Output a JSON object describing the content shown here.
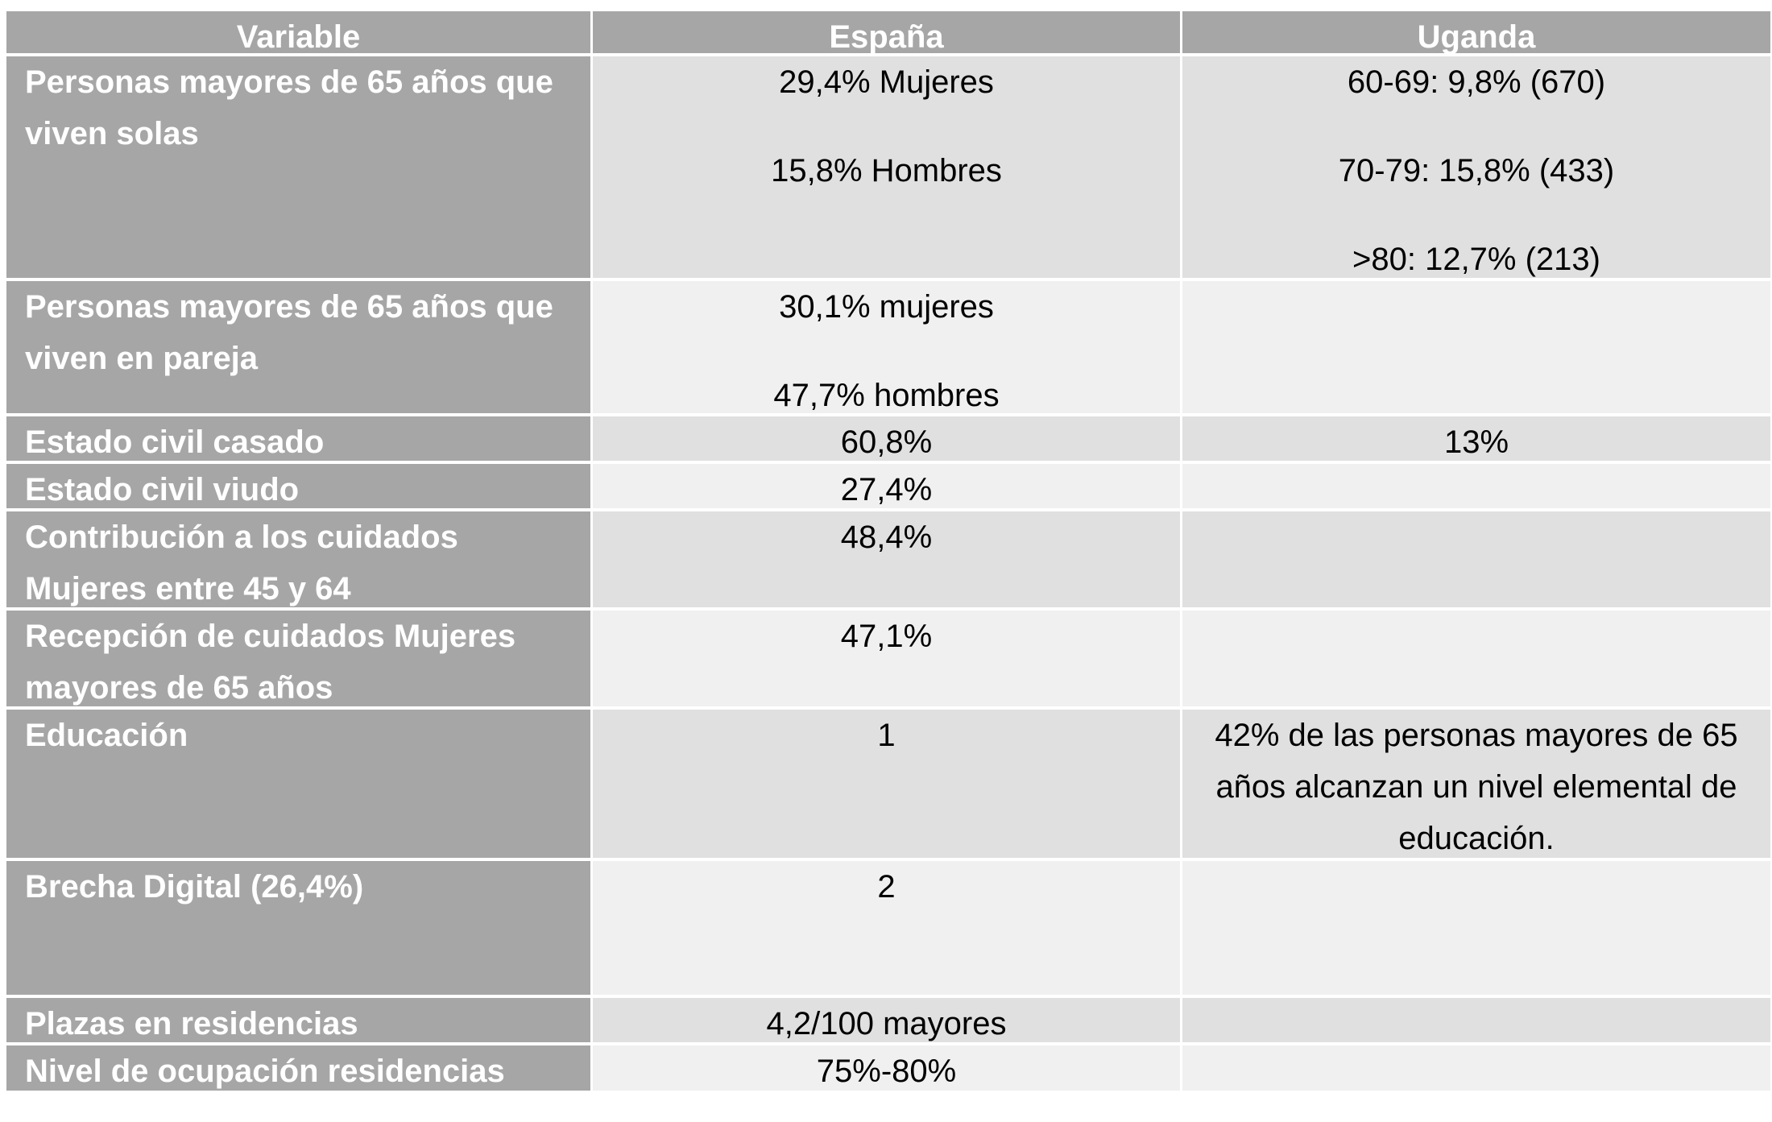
{
  "table": {
    "headers": [
      "Variable",
      "España",
      "Uganda"
    ],
    "rows": [
      {
        "variable": "Personas mayores de 65 años que viven solas",
        "espana": [
          "29,4% Mujeres",
          "15,8% Hombres"
        ],
        "uganda": [
          "60-69: 9,8% (670)",
          "70-79: 15,8% (433)",
          ">80: 12,7% (213)"
        ]
      },
      {
        "variable": "Personas mayores de 65 años que viven en pareja",
        "espana": [
          "30,1% mujeres",
          "47,7% hombres"
        ],
        "uganda": []
      },
      {
        "variable": "Estado civil casado",
        "espana": [
          "60,8%"
        ],
        "uganda": [
          "13%"
        ]
      },
      {
        "variable": "Estado civil viudo",
        "espana": [
          "27,4%"
        ],
        "uganda": []
      },
      {
        "variable": "Contribución a los cuidados Mujeres entre 45 y 64",
        "espana": [
          "48,4%"
        ],
        "uganda": []
      },
      {
        "variable": "Recepción de cuidados Mujeres mayores de 65 años",
        "espana": [
          "47,1%"
        ],
        "uganda": []
      },
      {
        "variable": "Educación",
        "espana": [
          "1"
        ],
        "uganda": [
          "42% de las personas mayores de 65 años alcanzan un nivel elemental de educación."
        ]
      },
      {
        "variable": "Brecha Digital (26,4%)",
        "espana": [
          "2"
        ],
        "uganda": []
      },
      {
        "variable": "Plazas en residencias",
        "espana": [
          "4,2/100 mayores"
        ],
        "uganda": []
      },
      {
        "variable": "Nivel de ocupación residencias",
        "espana": [
          "75%-80%"
        ],
        "uganda": []
      }
    ]
  }
}
